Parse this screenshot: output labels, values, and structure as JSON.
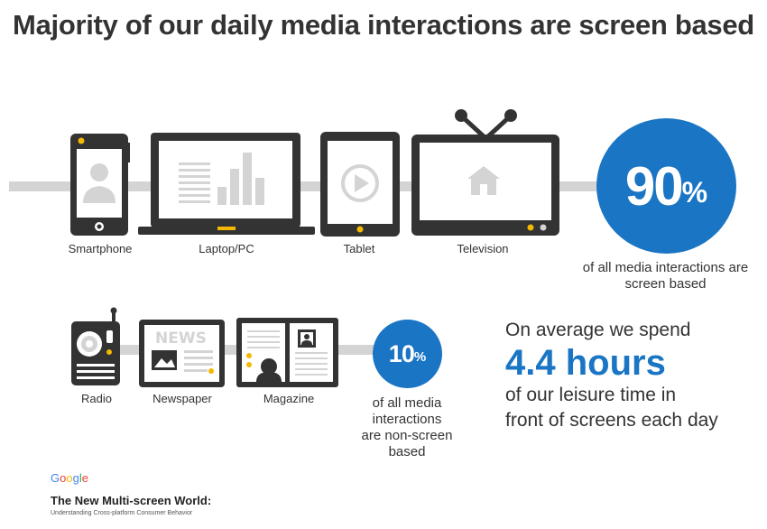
{
  "title": "Majority of our daily media interactions are screen based",
  "screen_devices": [
    {
      "label": "Smartphone",
      "icon": "smartphone-icon"
    },
    {
      "label": "Laptop/PC",
      "icon": "laptop-icon"
    },
    {
      "label": "Tablet",
      "icon": "tablet-icon"
    },
    {
      "label": "Television",
      "icon": "television-icon"
    }
  ],
  "screen_stat": {
    "value": "90",
    "unit": "%",
    "caption_1": "of all media interactions are",
    "caption_2": "screen based",
    "fraction": 0.9
  },
  "nonscreen_devices": [
    {
      "label": "Radio",
      "icon": "radio-icon"
    },
    {
      "label": "Newspaper",
      "icon": "newspaper-icon",
      "masthead": "NEWS"
    },
    {
      "label": "Magazine",
      "icon": "magazine-icon"
    }
  ],
  "nonscreen_stat": {
    "value": "10",
    "unit": "%",
    "caption": [
      "of all media",
      "interactions",
      "are non-screen",
      "based"
    ],
    "fraction": 0.1
  },
  "average": {
    "line1": "On average we spend",
    "big": "4.4 hours",
    "line2": "of our leisure time in",
    "line3": "front of screens each day"
  },
  "source": {
    "brand": "Google",
    "title": "The New Multi-screen World:",
    "subtitle": "Understanding Cross-platform Consumer Behavior"
  },
  "colors": {
    "accent": "#1a75c4",
    "dark": "#333333",
    "yellow": "#f5b800",
    "track": "#d4d4d4"
  }
}
